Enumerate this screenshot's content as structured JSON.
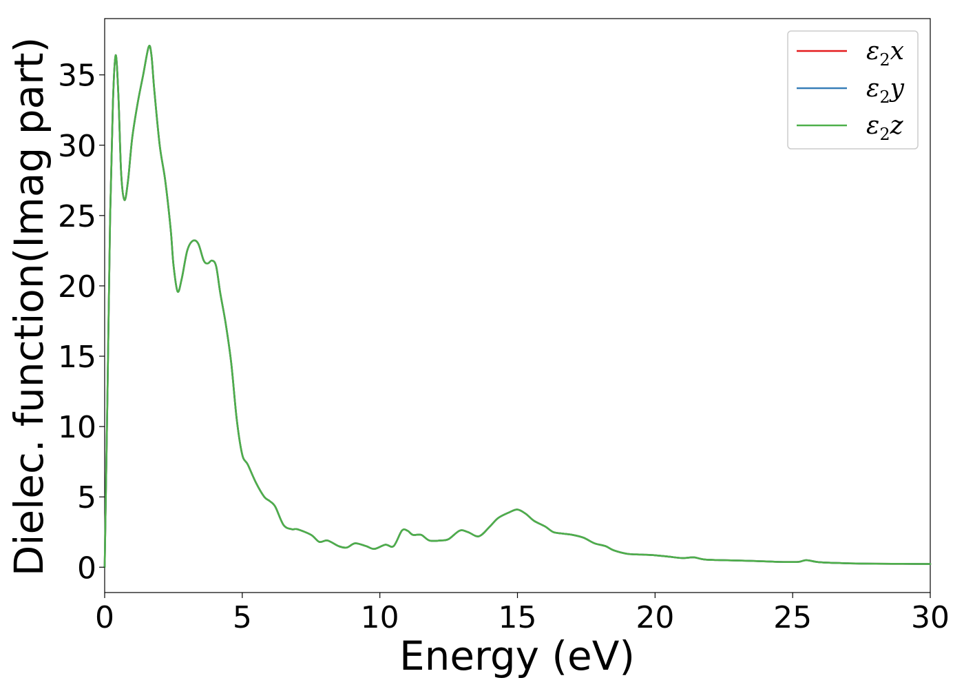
{
  "chart_data": {
    "type": "line",
    "xlabel": "Energy (eV)",
    "ylabel": "Dielec. function(Imag part)",
    "xlim": [
      0,
      30
    ],
    "ylim": [
      -1.8,
      39
    ],
    "xticks": [
      0,
      5,
      10,
      15,
      20,
      25,
      30
    ],
    "yticks": [
      0,
      5,
      10,
      15,
      20,
      25,
      30,
      35
    ],
    "legend_position": "top-right",
    "grid": false,
    "series": [
      {
        "name": "ε₂x",
        "legend_base": "ε",
        "legend_sub": "2",
        "legend_axis": "x",
        "color": "#e41a1c"
      },
      {
        "name": "ε₂y",
        "legend_base": "ε",
        "legend_sub": "2",
        "legend_axis": "y",
        "color": "#377eb8"
      },
      {
        "name": "ε₂z",
        "legend_base": "ε",
        "legend_sub": "2",
        "legend_axis": "z",
        "color": "#4daf4a"
      }
    ],
    "curve_points": [
      [
        0.0,
        0.0
      ],
      [
        0.1,
        12.0
      ],
      [
        0.2,
        25.0
      ],
      [
        0.3,
        33.0
      ],
      [
        0.4,
        36.4
      ],
      [
        0.5,
        33.5
      ],
      [
        0.6,
        28.0
      ],
      [
        0.72,
        26.1
      ],
      [
        0.85,
        27.5
      ],
      [
        1.0,
        30.5
      ],
      [
        1.2,
        33.0
      ],
      [
        1.4,
        35.0
      ],
      [
        1.6,
        37.0
      ],
      [
        1.7,
        36.4
      ],
      [
        1.8,
        34.0
      ],
      [
        2.0,
        30.0
      ],
      [
        2.2,
        27.5
      ],
      [
        2.4,
        24.0
      ],
      [
        2.5,
        21.5
      ],
      [
        2.65,
        19.6
      ],
      [
        2.8,
        20.5
      ],
      [
        3.0,
        22.5
      ],
      [
        3.2,
        23.2
      ],
      [
        3.4,
        23.0
      ],
      [
        3.6,
        21.8
      ],
      [
        3.75,
        21.6
      ],
      [
        3.9,
        21.8
      ],
      [
        4.05,
        21.4
      ],
      [
        4.2,
        19.5
      ],
      [
        4.4,
        17.3
      ],
      [
        4.6,
        14.5
      ],
      [
        4.8,
        10.5
      ],
      [
        5.0,
        8.0
      ],
      [
        5.2,
        7.3
      ],
      [
        5.5,
        6.0
      ],
      [
        5.8,
        5.0
      ],
      [
        6.0,
        4.7
      ],
      [
        6.2,
        4.3
      ],
      [
        6.5,
        3.0
      ],
      [
        6.8,
        2.7
      ],
      [
        7.0,
        2.7
      ],
      [
        7.5,
        2.3
      ],
      [
        7.8,
        1.8
      ],
      [
        8.1,
        1.9
      ],
      [
        8.5,
        1.5
      ],
      [
        8.8,
        1.4
      ],
      [
        9.1,
        1.7
      ],
      [
        9.5,
        1.5
      ],
      [
        9.8,
        1.3
      ],
      [
        10.2,
        1.6
      ],
      [
        10.5,
        1.5
      ],
      [
        10.8,
        2.6
      ],
      [
        11.0,
        2.6
      ],
      [
        11.2,
        2.3
      ],
      [
        11.5,
        2.3
      ],
      [
        11.8,
        1.9
      ],
      [
        12.2,
        1.9
      ],
      [
        12.5,
        2.0
      ],
      [
        12.9,
        2.6
      ],
      [
        13.2,
        2.5
      ],
      [
        13.6,
        2.2
      ],
      [
        14.0,
        2.9
      ],
      [
        14.3,
        3.5
      ],
      [
        14.7,
        3.9
      ],
      [
        15.0,
        4.1
      ],
      [
        15.3,
        3.8
      ],
      [
        15.6,
        3.3
      ],
      [
        16.0,
        2.9
      ],
      [
        16.3,
        2.5
      ],
      [
        16.6,
        2.4
      ],
      [
        17.0,
        2.3
      ],
      [
        17.4,
        2.1
      ],
      [
        17.8,
        1.7
      ],
      [
        18.2,
        1.5
      ],
      [
        18.5,
        1.2
      ],
      [
        19.0,
        0.95
      ],
      [
        19.5,
        0.9
      ],
      [
        20.0,
        0.85
      ],
      [
        20.5,
        0.75
      ],
      [
        21.0,
        0.65
      ],
      [
        21.4,
        0.7
      ],
      [
        21.8,
        0.55
      ],
      [
        22.5,
        0.5
      ],
      [
        23.5,
        0.45
      ],
      [
        24.5,
        0.38
      ],
      [
        25.2,
        0.38
      ],
      [
        25.5,
        0.5
      ],
      [
        26.0,
        0.35
      ],
      [
        27.0,
        0.28
      ],
      [
        28.0,
        0.25
      ],
      [
        29.0,
        0.24
      ],
      [
        30.0,
        0.23
      ]
    ]
  }
}
